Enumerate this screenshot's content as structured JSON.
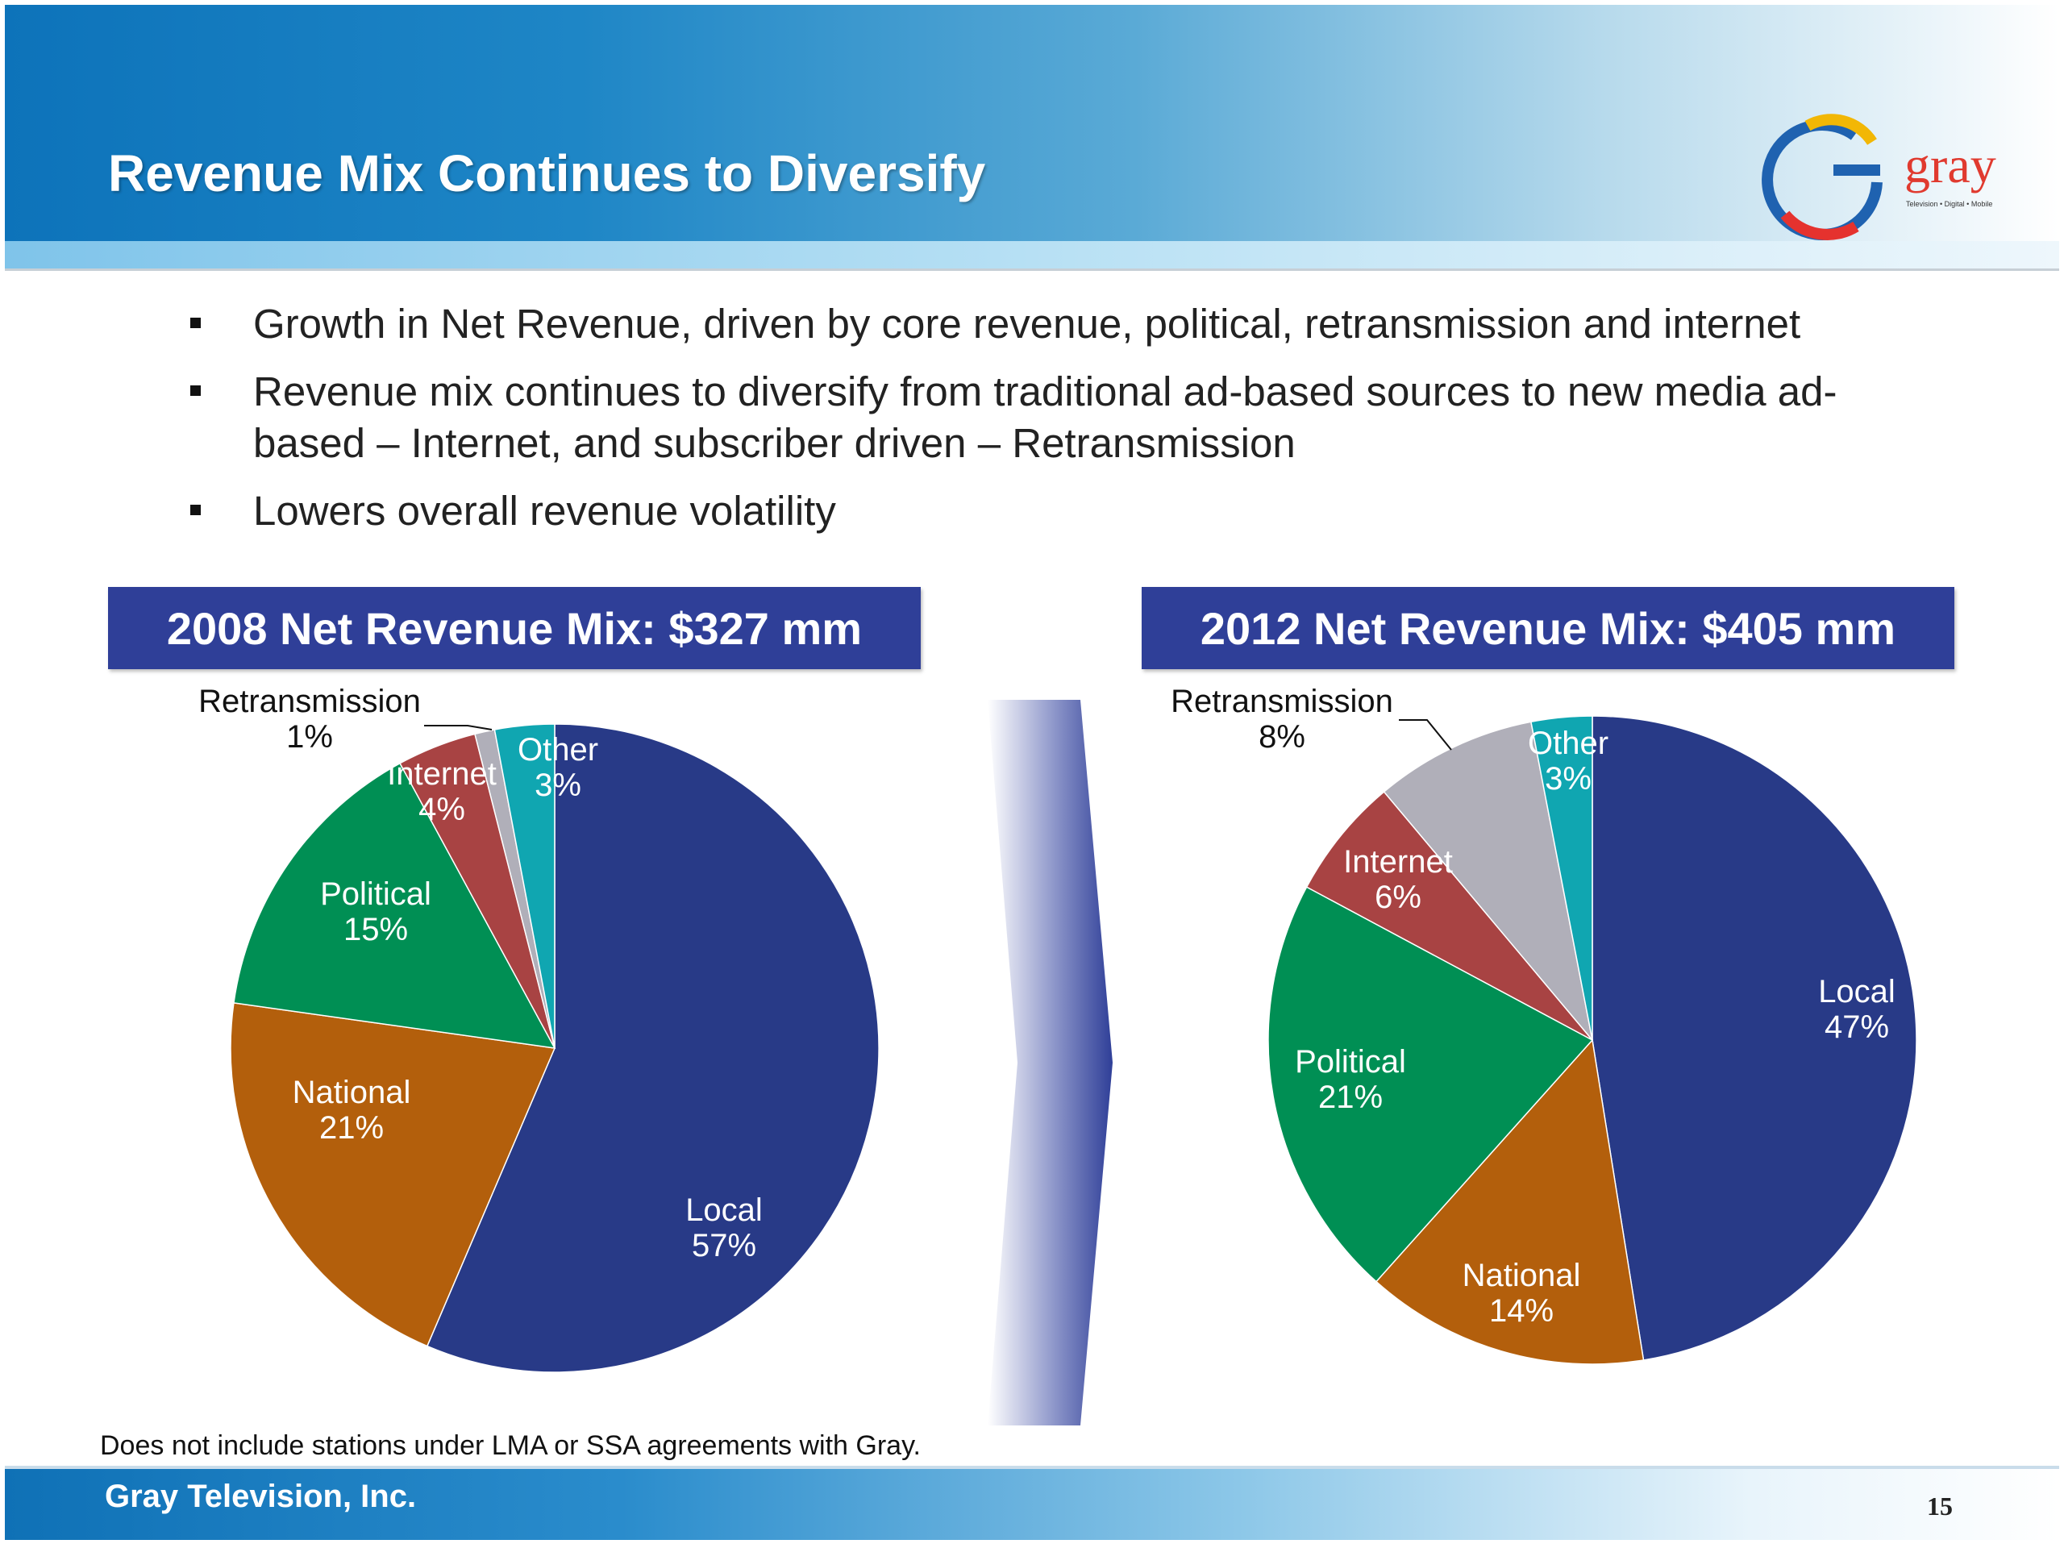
{
  "header": {
    "title": "Revenue Mix Continues to Diversify",
    "logo_text": "gray",
    "logo_tagline": "Television • Digital • Mobile"
  },
  "bullets": [
    "Growth in Net Revenue, driven by core revenue, political, retransmission and internet",
    "Revenue mix continues to diversify from traditional ad-based sources to new media ad-based – Internet, and subscriber driven – Retransmission",
    "Lowers overall revenue volatility"
  ],
  "footnote": "Does not include stations under LMA or SSA agreements with Gray.",
  "footer": {
    "company": "Gray Television, Inc.",
    "page_number": "15"
  },
  "colors": {
    "Local": "#283a87",
    "National": "#b35f0c",
    "Political": "#008f54",
    "Internet": "#a84343",
    "Retransmission": "#b0afb9",
    "Other": "#10a6b1",
    "header_box": "#2f3f98"
  },
  "chart_data": [
    {
      "type": "pie",
      "title": "2008 Net Revenue Mix: $327 mm",
      "categories": [
        "Local",
        "National",
        "Political",
        "Internet",
        "Retransmission",
        "Other"
      ],
      "values": [
        57,
        21,
        15,
        4,
        1,
        3
      ],
      "labels": [
        "57%",
        "21%",
        "15%",
        "4%",
        "1%",
        "3%"
      ]
    },
    {
      "type": "pie",
      "title": "2012 Net Revenue Mix: $405 mm",
      "categories": [
        "Local",
        "National",
        "Political",
        "Internet",
        "Retransmission",
        "Other"
      ],
      "values": [
        47,
        14,
        21,
        6,
        8,
        3
      ],
      "labels": [
        "47%",
        "14%",
        "21%",
        "6%",
        "8%",
        "3%"
      ]
    }
  ]
}
